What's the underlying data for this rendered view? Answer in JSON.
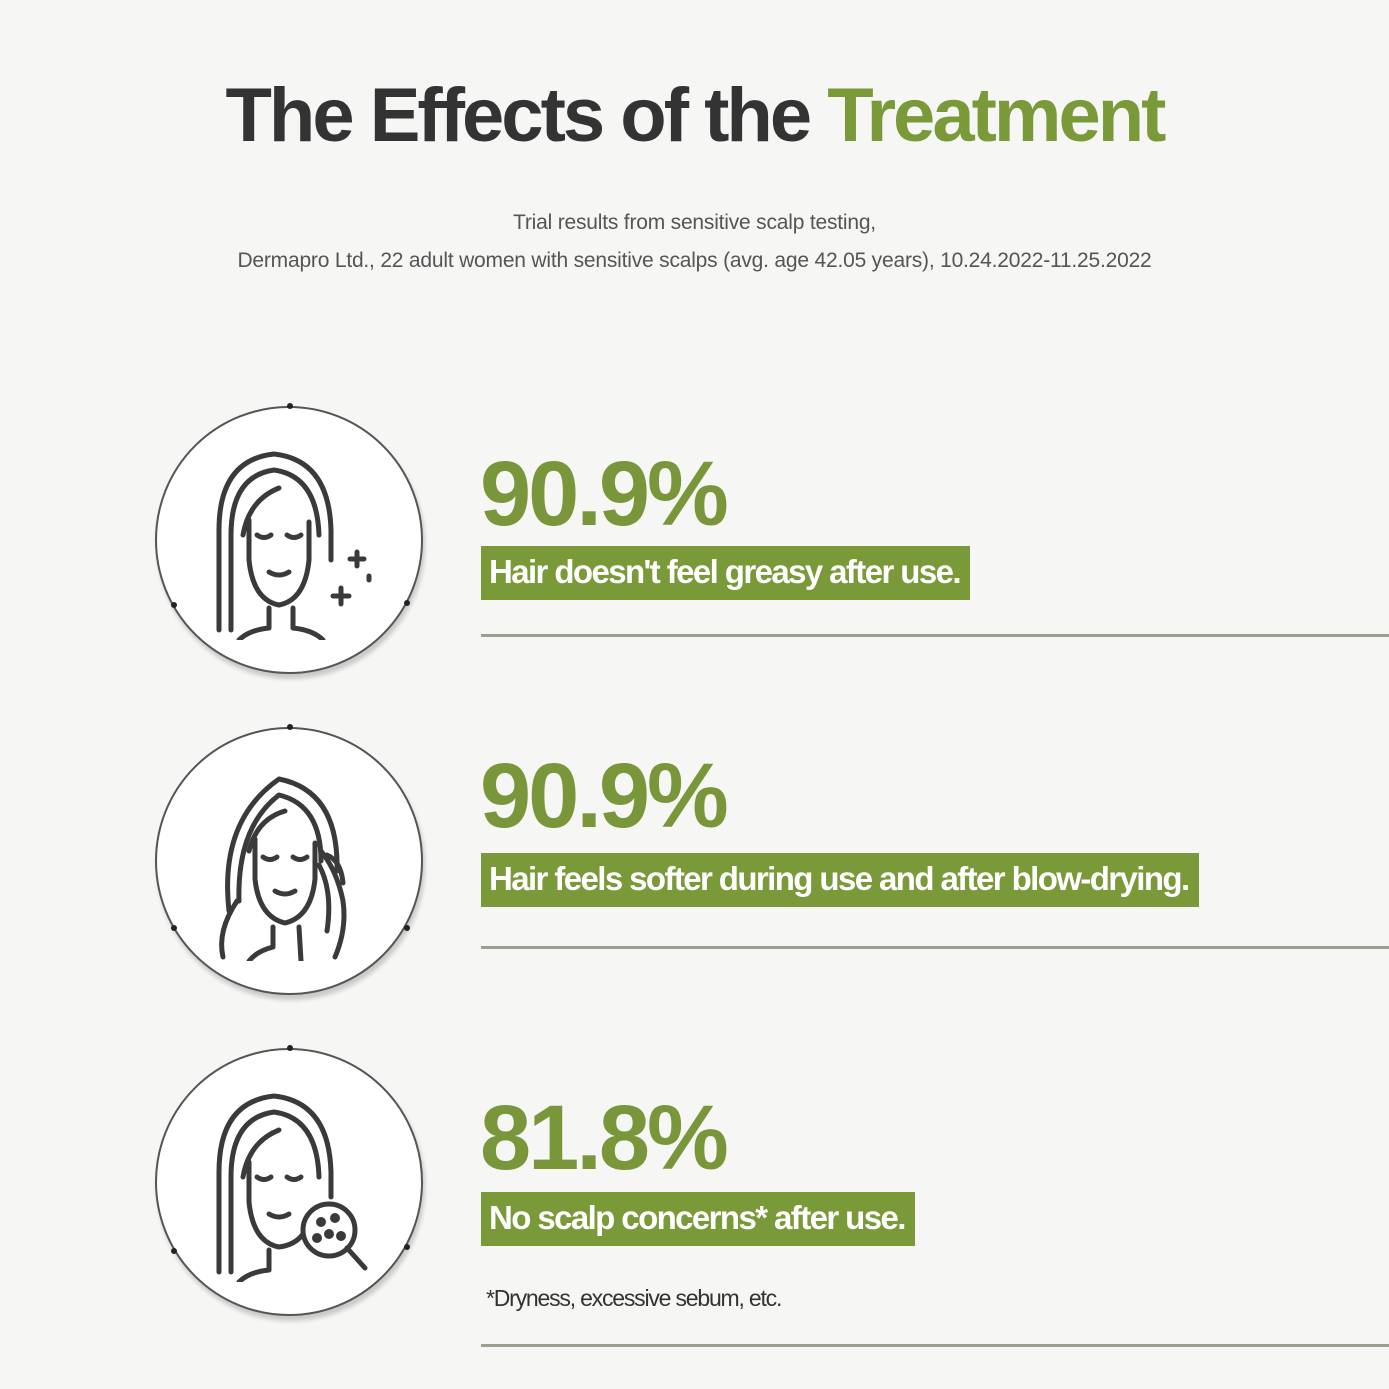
{
  "header": {
    "title_main": "The Effects of the",
    "title_accent": "Treatment",
    "subtitle_line1": "Trial results from sensitive scalp testing,",
    "subtitle_line2": "Dermapro Ltd., 22 adult women with sensitive scalps (avg. age 42.05 years), 10.24.2022-11.25.2022"
  },
  "results": [
    {
      "percent": "90.9%",
      "label": "Hair doesn't feel greasy after use.",
      "icon": "woman-sparkle-hair-icon"
    },
    {
      "percent": "90.9%",
      "label": "Hair feels softer during use and after blow-drying.",
      "icon": "woman-touching-hair-icon"
    },
    {
      "percent": "81.8%",
      "label": "No scalp concerns* after use.",
      "icon": "woman-scalp-magnifier-icon"
    }
  ],
  "footnote": "*Dryness, excessive sebum, etc.",
  "colors": {
    "accent": "#7a9a3a",
    "title": "#333333",
    "background": "#f6f6f5"
  }
}
